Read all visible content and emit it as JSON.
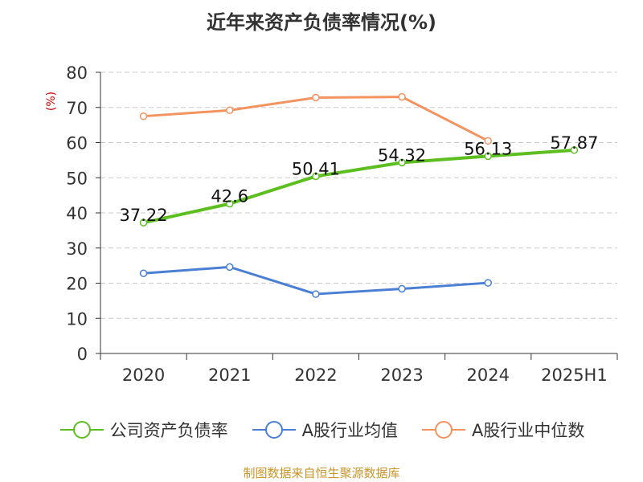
{
  "chart_data": {
    "type": "line",
    "title": "近年来资产负债率情况(%)",
    "ylabel": "(%)",
    "xlabel": "",
    "ylim": [
      0,
      80
    ],
    "yticks": [
      0,
      10,
      20,
      30,
      40,
      50,
      60,
      70,
      80
    ],
    "categories": [
      "2020",
      "2021",
      "2022",
      "2023",
      "2024",
      "2025H1"
    ],
    "series": [
      {
        "name": "公司资产负债率",
        "color": "#5cbf1f",
        "values": [
          37.22,
          42.6,
          50.41,
          54.32,
          56.13,
          57.87
        ],
        "labels": [
          "37.22",
          "42.6",
          "50.41",
          "54.32",
          "56.13",
          "57.87"
        ]
      },
      {
        "name": "A股行业均值",
        "color": "#4a7fd4",
        "values": [
          22.8,
          24.6,
          16.9,
          18.4,
          20.1,
          null
        ]
      },
      {
        "name": "A股行业中位数",
        "color": "#f29360",
        "values": [
          67.5,
          69.2,
          72.8,
          73.0,
          60.5,
          null
        ]
      }
    ]
  },
  "source": "制图数据来自恒生聚源数据库"
}
